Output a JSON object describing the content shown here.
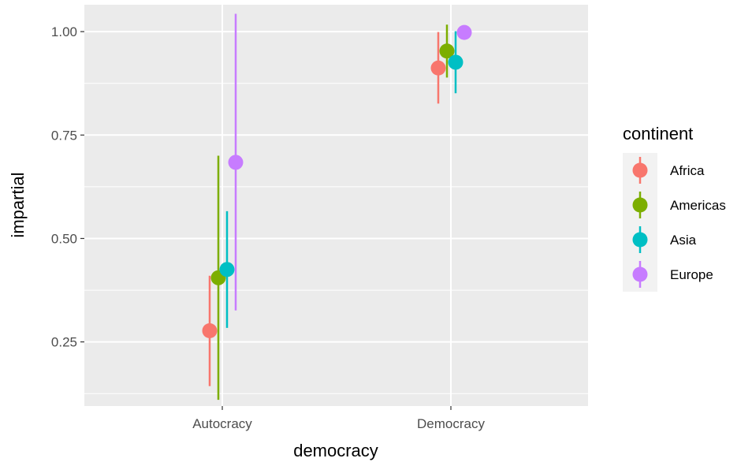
{
  "chart_data": {
    "type": "scatter",
    "subtype": "pointrange-dodged",
    "title": "",
    "xlabel": "democracy",
    "ylabel": "impartial",
    "categories": [
      "Autocracy",
      "Democracy"
    ],
    "ylim": [
      0.095,
      1.065
    ],
    "yticks": [
      0.25,
      0.5,
      0.75,
      1.0
    ],
    "ytick_labels": [
      "0.25",
      "0.50",
      "0.75",
      "1.00"
    ],
    "grid": true,
    "legend": {
      "title": "continent",
      "placement": "right"
    },
    "series": [
      {
        "name": "Africa",
        "color": "#F8766D",
        "points": [
          {
            "x": "Autocracy",
            "y": 0.277,
            "ymin": 0.143,
            "ymax": 0.41
          },
          {
            "x": "Democracy",
            "y": 0.912,
            "ymin": 0.826,
            "ymax": 0.999
          }
        ]
      },
      {
        "name": "Americas",
        "color": "#7CAE00",
        "points": [
          {
            "x": "Autocracy",
            "y": 0.405,
            "ymin": 0.11,
            "ymax": 0.7
          },
          {
            "x": "Democracy",
            "y": 0.953,
            "ymin": 0.889,
            "ymax": 1.017
          }
        ]
      },
      {
        "name": "Asia",
        "color": "#00BFC4",
        "points": [
          {
            "x": "Autocracy",
            "y": 0.425,
            "ymin": 0.284,
            "ymax": 0.566
          },
          {
            "x": "Democracy",
            "y": 0.926,
            "ymin": 0.851,
            "ymax": 1.001
          }
        ]
      },
      {
        "name": "Europe",
        "color": "#C77CFF",
        "points": [
          {
            "x": "Autocracy",
            "y": 0.684,
            "ymin": 0.326,
            "ymax": 1.043
          },
          {
            "x": "Democracy",
            "y": 0.998,
            "ymin": 0.998,
            "ymax": 0.998
          }
        ]
      }
    ]
  }
}
